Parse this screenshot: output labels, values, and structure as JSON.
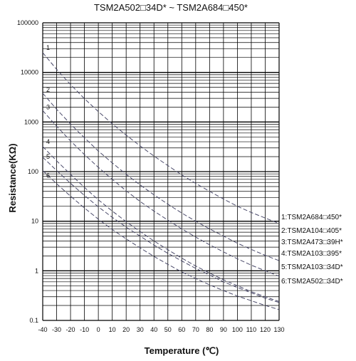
{
  "chart_data": {
    "type": "line",
    "title": "TSM2A502□34D* ~ TSM2A684□450*",
    "xlabel": "Temperature (℃)",
    "ylabel": "Resistance(KΩ)",
    "xlim": [
      -40,
      130
    ],
    "ylim": [
      0.1,
      100000
    ],
    "yscale": "log",
    "x_ticks": [
      "-40",
      "-30",
      "-20",
      "-10",
      "0",
      "10",
      "20",
      "30",
      "40",
      "50",
      "60",
      "70",
      "80",
      "90",
      "100",
      "110",
      "120",
      "130"
    ],
    "y_ticks": [
      "0.1",
      "1",
      "10",
      "100",
      "1000",
      "10000",
      "100000"
    ],
    "grid": true,
    "legend_placement": "right",
    "series": [
      {
        "name": "1:TSM2A684□450*",
        "label": "1",
        "x": [
          -40,
          -30,
          -20,
          -10,
          0,
          10,
          20,
          30,
          40,
          50,
          60,
          70,
          80,
          90,
          100,
          110,
          120,
          130
        ],
        "values": [
          25000,
          11500,
          5700,
          2950,
          1620,
          920,
          545,
          330,
          206,
          132,
          86,
          58,
          40,
          28,
          20,
          15,
          11.6,
          9
        ]
      },
      {
        "name": "2:TSM2A104□405*",
        "label": "2",
        "x": [
          -40,
          -30,
          -20,
          -10,
          0,
          10,
          20,
          30,
          40,
          50,
          60,
          70,
          80,
          90,
          100,
          110,
          120,
          130
        ],
        "values": [
          3800,
          1800,
          910,
          480,
          260,
          150,
          88,
          54,
          34,
          22,
          14.6,
          10,
          7,
          5,
          3.6,
          2.7,
          2.05,
          1.6
        ]
      },
      {
        "name": "3:TSM2A473□39H*",
        "label": "3",
        "x": [
          -40,
          -30,
          -20,
          -10,
          0,
          10,
          20,
          30,
          40,
          50,
          60,
          70,
          80,
          90,
          100,
          110,
          120,
          130
        ],
        "values": [
          1700,
          820,
          415,
          220,
          122,
          70,
          41,
          25,
          16,
          10.5,
          7,
          4.8,
          3.35,
          2.4,
          1.75,
          1.3,
          1.0,
          0.78
        ]
      },
      {
        "name": "4:TSM2A103□395*",
        "label": "4",
        "x": [
          -40,
          -30,
          -20,
          -10,
          0,
          10,
          20,
          30,
          40,
          50,
          60,
          70,
          80,
          90,
          100,
          110,
          120,
          130
        ],
        "values": [
          320,
          165,
          88,
          48,
          27,
          16,
          9.8,
          6.2,
          4.0,
          2.65,
          1.8,
          1.25,
          0.9,
          0.66,
          0.5,
          0.38,
          0.3,
          0.24
        ]
      },
      {
        "name": "5:TSM2A103□34D*",
        "label": "5",
        "x": [
          -40,
          -30,
          -20,
          -10,
          0,
          10,
          20,
          30,
          40,
          50,
          60,
          70,
          80,
          90,
          100,
          110,
          120,
          130
        ],
        "values": [
          195,
          105,
          58,
          33,
          19.5,
          12,
          7.6,
          5.0,
          3.3,
          2.25,
          1.58,
          1.12,
          0.82,
          0.6,
          0.46,
          0.36,
          0.28,
          0.23
        ]
      },
      {
        "name": "6:TSM2A502□34D*",
        "label": "6",
        "x": [
          -40,
          -30,
          -20,
          -10,
          0,
          10,
          20,
          30,
          40,
          50,
          60,
          70,
          80,
          90,
          100,
          110,
          120,
          130
        ],
        "values": [
          105,
          57,
          32,
          18.5,
          11,
          6.8,
          4.4,
          2.9,
          1.95,
          1.35,
          0.95,
          0.7,
          0.52,
          0.4,
          0.31,
          0.25,
          0.2,
          0.165
        ]
      }
    ]
  }
}
